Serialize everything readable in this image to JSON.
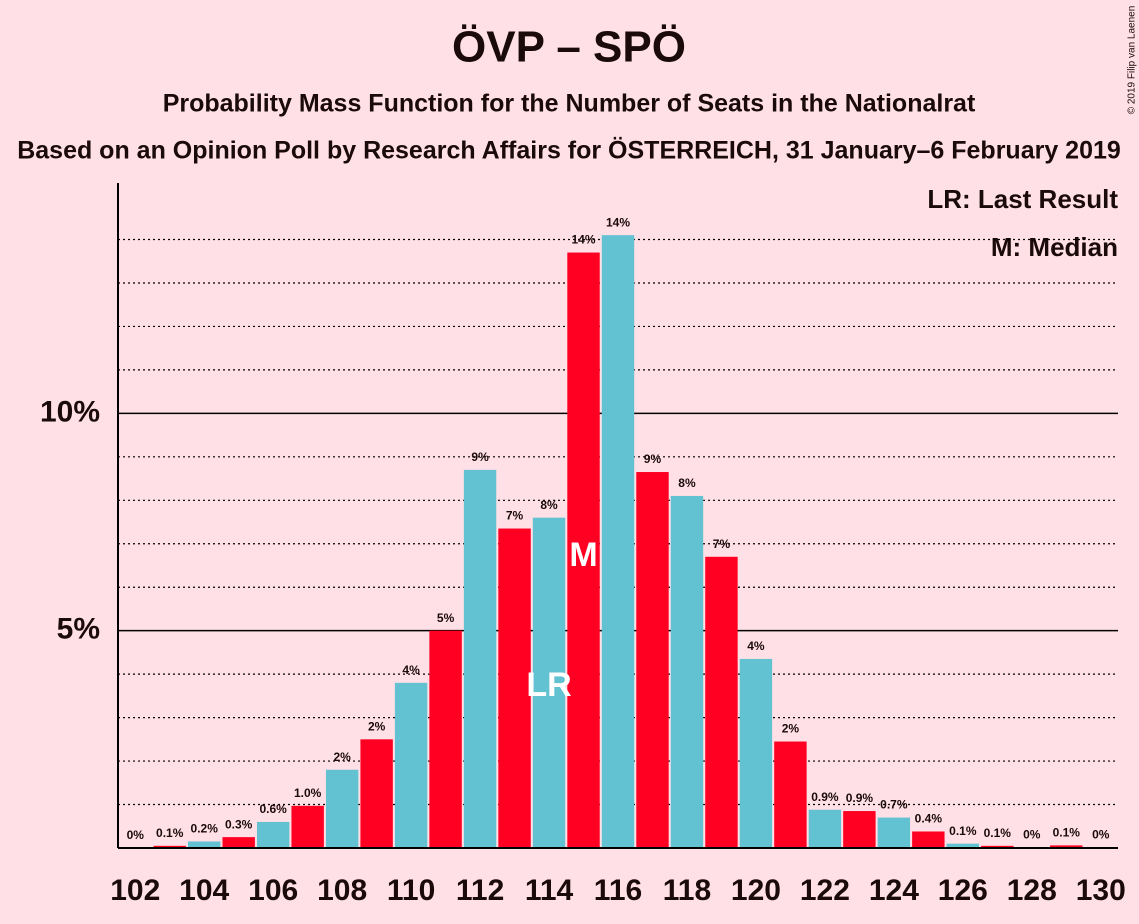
{
  "chart_data": {
    "type": "bar",
    "title": "ÖVP – SPÖ",
    "subtitle": "Probability Mass Function for the Number of Seats in the Nationalrat",
    "subtitle2": "Based on an Opinion Poll by Research Affairs for ÖSTERREICH, 31 January–6 February 2019",
    "copyright": "© 2019 Filip van Laenen",
    "categories": [
      102,
      null,
      104,
      null,
      106,
      null,
      108,
      null,
      110,
      null,
      112,
      null,
      114,
      null,
      116,
      null,
      118,
      null,
      120,
      null,
      122,
      null,
      124,
      null,
      126,
      null,
      128,
      null,
      130
    ],
    "values": [
      0,
      0.05,
      0.15,
      0.25,
      0.6,
      0.97,
      1.8,
      2.5,
      3.8,
      5.0,
      8.7,
      7.35,
      7.6,
      13.7,
      14.1,
      8.65,
      8.1,
      6.7,
      4.35,
      2.45,
      0.88,
      0.85,
      0.7,
      0.38,
      0.1,
      0.05,
      0.02,
      0.06,
      0.01
    ],
    "value_labels": [
      "0%",
      "0.1%",
      "0.2%",
      "0.3%",
      "0.6%",
      "1.0%",
      "2%",
      "2%",
      "4%",
      "5%",
      "9%",
      "7%",
      "8%",
      "14%",
      "14%",
      "9%",
      "8%",
      "7%",
      "4%",
      "2%",
      "0.9%",
      "0.9%",
      "0.7%",
      "0.4%",
      "0.1%",
      "0.1%",
      "0%",
      "0.1%",
      "0%"
    ],
    "colors": [
      "#63c2d2",
      "#ff0022"
    ],
    "ylim": [
      0,
      15.3
    ],
    "yticks": [
      {
        "value": 5,
        "label": "5%"
      },
      {
        "value": 10,
        "label": "10%"
      }
    ],
    "minor_grid": [
      1,
      2,
      3,
      4,
      6,
      7,
      8,
      9,
      11,
      12,
      13,
      14
    ],
    "annotations": [
      {
        "label": "LR",
        "x": 114,
        "y": 3.7
      },
      {
        "label": "M",
        "x": 115,
        "y": 6.7
      }
    ],
    "legend": [
      "LR: Last Result",
      "M: Median"
    ]
  }
}
